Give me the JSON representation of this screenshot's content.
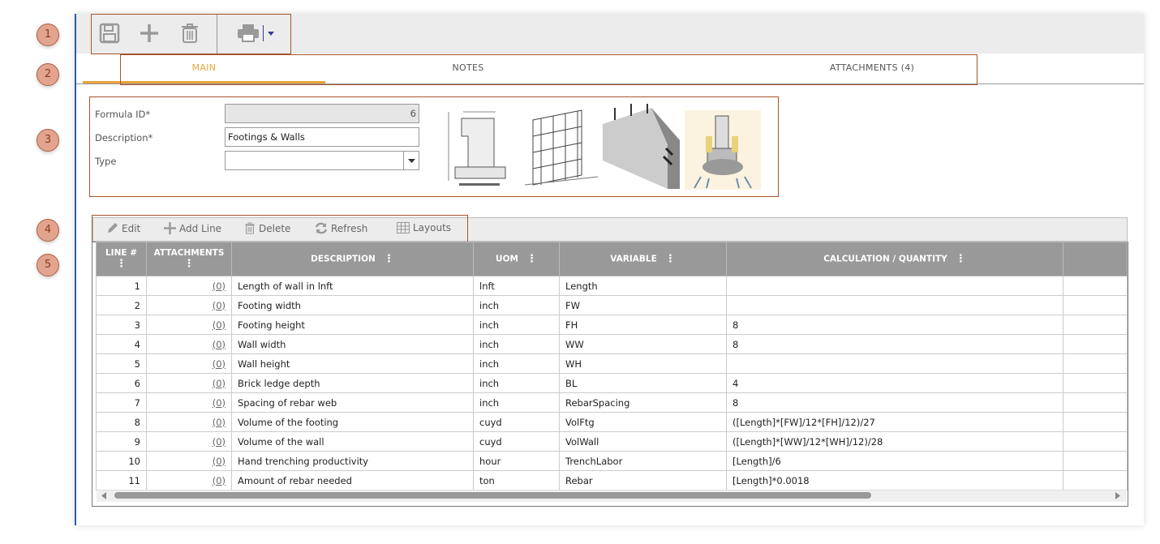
{
  "annotations": [
    "1",
    "2",
    "3",
    "4",
    "5"
  ],
  "toolbar": {
    "icons": [
      "save-icon",
      "add-icon",
      "delete-icon",
      "print-icon"
    ]
  },
  "tabs": [
    {
      "label": "MAIN",
      "active": true
    },
    {
      "label": "NOTES"
    },
    {
      "label": "ATTACHMENTS (4)"
    }
  ],
  "colors": {
    "accent": "#e8a33a",
    "annotation": "#a8532e",
    "header": "#999999"
  },
  "form": {
    "formula_id_label": "Formula ID*",
    "formula_id": "6",
    "description_label": "Description*",
    "description": "Footings & Walls",
    "type_label": "Type",
    "type": ""
  },
  "grid_toolbar": {
    "edit": "Edit",
    "add_line": "Add Line",
    "delete": "Delete",
    "refresh": "Refresh",
    "layouts": "Layouts"
  },
  "table": {
    "headers": [
      "LINE #",
      "ATTACHMENTS",
      "DESCRIPTION",
      "UOM",
      "VARIABLE",
      "CALCULATION / QUANTITY"
    ],
    "rows": [
      [
        "1",
        "(0)",
        "Length of wall in lnft",
        "lnft",
        "Length",
        ""
      ],
      [
        "2",
        "(0)",
        "Footing width",
        "inch",
        "FW",
        ""
      ],
      [
        "3",
        "(0)",
        "Footing height",
        "inch",
        "FH",
        "8"
      ],
      [
        "4",
        "(0)",
        "Wall width",
        "inch",
        "WW",
        "8"
      ],
      [
        "5",
        "(0)",
        "Wall height",
        "inch",
        "WH",
        ""
      ],
      [
        "6",
        "(0)",
        "Brick ledge depth",
        "inch",
        "BL",
        "4"
      ],
      [
        "7",
        "(0)",
        "Spacing of rebar web",
        "inch",
        "RebarSpacing",
        "8"
      ],
      [
        "8",
        "(0)",
        "Volume of the footing",
        "cuyd",
        "VolFtg",
        "([Length]*[FW]/12*[FH]/12)/27"
      ],
      [
        "9",
        "(0)",
        "Volume of the wall",
        "cuyd",
        "VolWall",
        "([Length]*[WW]/12*[WH]/12)/28"
      ],
      [
        "10",
        "(0)",
        "Hand trenching productivity",
        "hour",
        "TrenchLabor",
        "[Length]/6"
      ],
      [
        "11",
        "(0)",
        "Amount of rebar needed",
        "ton",
        "Rebar",
        "[Length]*0.0018"
      ]
    ]
  }
}
